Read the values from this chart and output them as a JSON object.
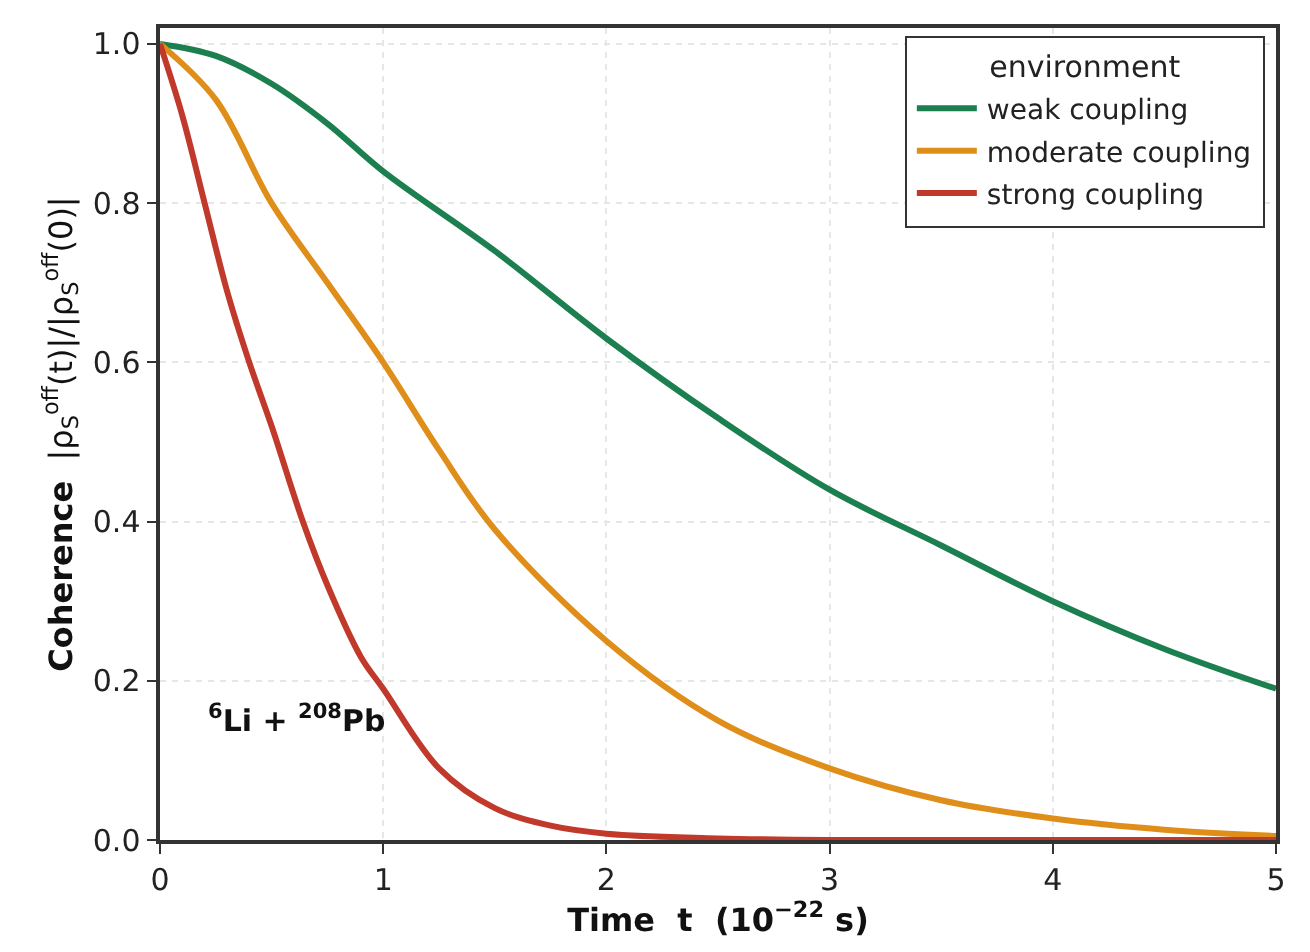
{
  "chart_data": {
    "type": "line",
    "xlabel": "Time  t  (10$^{−22}$ s)",
    "ylabel": "Coherence  |ρ$_{S}$$^{off}$(t)|/|ρ$_{S}$$^{off}$(0)|",
    "legend_title": "environment",
    "xlim": [
      0,
      5
    ],
    "ylim": [
      0,
      1.02
    ],
    "xticks": [
      0,
      1,
      2,
      3,
      4,
      5
    ],
    "yticks": [
      {
        "value": 0,
        "label": "0.0"
      },
      {
        "value": 0.2,
        "label": "0.2"
      },
      {
        "value": 0.4,
        "label": "0.4"
      },
      {
        "value": 0.6,
        "label": "0.6"
      },
      {
        "value": 0.8,
        "label": "0.8"
      },
      {
        "value": 1,
        "label": "1.0"
      }
    ],
    "grid": true,
    "legend": "top right",
    "marker": "none",
    "line_style": "solid",
    "annotations": [
      "$^{6}$Li + $^{208}$Pb"
    ],
    "series": [
      {
        "name": "weak coupling",
        "color": "#1b7f4f",
        "x": [
          0,
          0.25,
          0.5,
          0.75,
          1,
          1.5,
          2,
          2.5,
          3,
          3.5,
          4,
          4.5,
          5
        ],
        "values": [
          1,
          0.985,
          0.95,
          0.9,
          0.84,
          0.74,
          0.63,
          0.53,
          0.44,
          0.37,
          0.3,
          0.24,
          0.19
        ]
      },
      {
        "name": "moderate coupling",
        "color": "#e08e1a",
        "x": [
          0,
          0.25,
          0.5,
          0.75,
          1,
          1.25,
          1.5,
          2,
          2.5,
          3,
          3.5,
          4,
          4.5,
          5
        ],
        "values": [
          1,
          0.93,
          0.8,
          0.7,
          0.6,
          0.49,
          0.39,
          0.25,
          0.15,
          0.09,
          0.05,
          0.027,
          0.013,
          0.005
        ]
      },
      {
        "name": "strong coupling",
        "color": "#c0392b",
        "x": [
          0,
          0.1,
          0.2,
          0.3,
          0.4,
          0.5,
          0.64,
          0.75,
          0.9,
          1,
          1.25,
          1.5,
          1.75,
          2,
          2.5,
          3,
          4,
          5
        ],
        "values": [
          1,
          0.91,
          0.8,
          0.69,
          0.6,
          0.52,
          0.4,
          0.32,
          0.23,
          0.19,
          0.09,
          0.04,
          0.018,
          0.008,
          0.002,
          0,
          0,
          0
        ]
      }
    ]
  }
}
